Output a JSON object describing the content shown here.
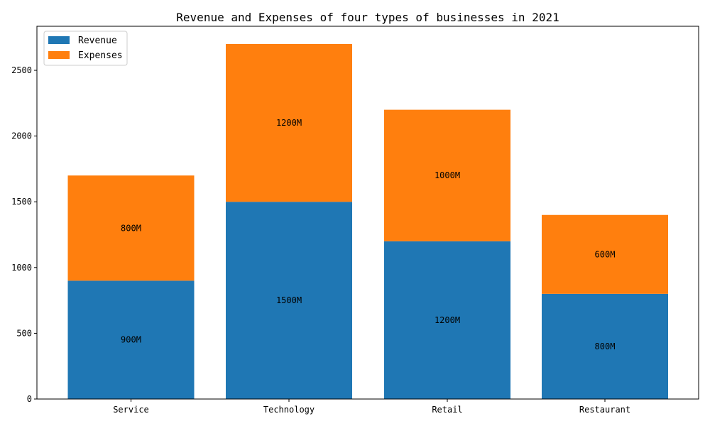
{
  "chart_data": {
    "type": "bar",
    "stacked": true,
    "title": "Revenue and Expenses of four types of businesses in 2021",
    "xlabel": "",
    "ylabel": "",
    "categories": [
      "Service",
      "Technology",
      "Retail",
      "Restaurant"
    ],
    "series": [
      {
        "name": "Revenue",
        "color": "#1f77b4",
        "values": [
          900,
          1500,
          1200,
          800
        ],
        "labels": [
          "900M",
          "1500M",
          "1200M",
          "800M"
        ]
      },
      {
        "name": "Expenses",
        "color": "#ff7f0e",
        "values": [
          800,
          1200,
          1000,
          600
        ],
        "labels": [
          "800M",
          "1200M",
          "1000M",
          "600M"
        ]
      }
    ],
    "ylim": [
      0,
      2835
    ],
    "yticks": [
      0,
      500,
      1000,
      1500,
      2000,
      2500
    ],
    "grid": false,
    "legend_position": "top-left"
  }
}
